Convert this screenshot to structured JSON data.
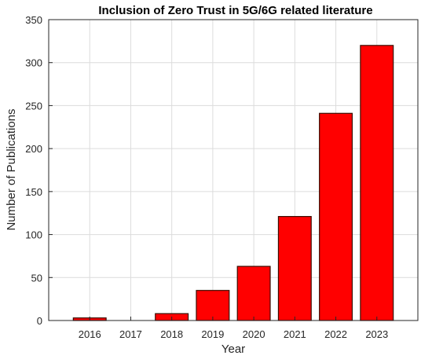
{
  "chart_data": {
    "type": "bar",
    "title": "Inclusion of Zero Trust in 5G/6G related literature",
    "xlabel": "Year",
    "ylabel": "Number of Publications",
    "categories": [
      "2016",
      "2017",
      "2018",
      "2019",
      "2020",
      "2021",
      "2022",
      "2023"
    ],
    "values": [
      3,
      0,
      8,
      35,
      63,
      121,
      241,
      320
    ],
    "ylim": [
      0,
      350
    ],
    "yticks": [
      "0",
      "50",
      "100",
      "150",
      "200",
      "250",
      "300",
      "350"
    ],
    "grid": true,
    "bar_color": "#ff0000",
    "bar_edge_color": "#3a0c00"
  }
}
